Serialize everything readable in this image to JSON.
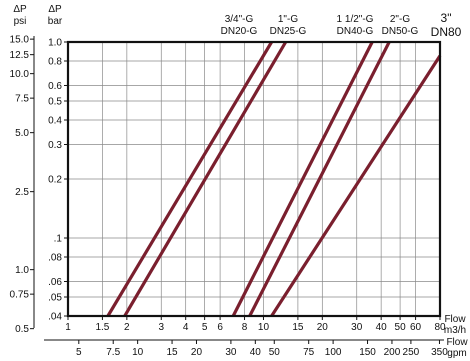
{
  "chart_data": {
    "type": "line",
    "x_scale": "log",
    "y_scale": "log",
    "grid": true,
    "header_left_psi": [
      "ΔP",
      "psi"
    ],
    "header_left_bar": [
      "ΔP",
      "bar"
    ],
    "x_axis_label_m3h": [
      "Flow",
      "m3/h"
    ],
    "x_axis_label_gpm": [
      "Flow",
      "gpm"
    ],
    "xlim_m3h": [
      1,
      80
    ],
    "ylim_bar": [
      0.04,
      1.0
    ],
    "x_ticks_m3h": [
      {
        "v": 1,
        "t": "1"
      },
      {
        "v": 1.5,
        "t": "1.5"
      },
      {
        "v": 2,
        "t": "2"
      },
      {
        "v": 3,
        "t": "3"
      },
      {
        "v": 4,
        "t": "4"
      },
      {
        "v": 5,
        "t": "5"
      },
      {
        "v": 6,
        "t": "6"
      },
      {
        "v": 8,
        "t": "8"
      },
      {
        "v": 10,
        "t": "10"
      },
      {
        "v": 15,
        "t": "15"
      },
      {
        "v": 20,
        "t": "20"
      },
      {
        "v": 30,
        "t": "30"
      },
      {
        "v": 40,
        "t": "40"
      },
      {
        "v": 50,
        "t": "50"
      },
      {
        "v": 60,
        "t": "60"
      },
      {
        "v": 80,
        "t": "80"
      }
    ],
    "x_ticks_gpm": [
      {
        "v": 5,
        "t": "5"
      },
      {
        "v": 7.5,
        "t": "7.5"
      },
      {
        "v": 10,
        "t": "10"
      },
      {
        "v": 15,
        "t": "15"
      },
      {
        "v": 20,
        "t": "20"
      },
      {
        "v": 30,
        "t": "30"
      },
      {
        "v": 40,
        "t": "40"
      },
      {
        "v": 50,
        "t": "50"
      },
      {
        "v": 75,
        "t": "75"
      },
      {
        "v": 100,
        "t": "100"
      },
      {
        "v": 150,
        "t": "150"
      },
      {
        "v": 200,
        "t": "200"
      },
      {
        "v": 250,
        "t": "250"
      },
      {
        "v": 350,
        "t": "350"
      }
    ],
    "y_ticks_bar": [
      {
        "v": 1.0,
        "t": "1.0"
      },
      {
        "v": 0.8,
        "t": "0.8"
      },
      {
        "v": 0.6,
        "t": "0.6"
      },
      {
        "v": 0.5,
        "t": "0.5"
      },
      {
        "v": 0.4,
        "t": "0.4"
      },
      {
        "v": 0.3,
        "t": "0.3"
      },
      {
        "v": 0.2,
        "t": "0.2"
      },
      {
        "v": 0.1,
        "t": ".1"
      },
      {
        "v": 0.08,
        "t": ".08"
      },
      {
        "v": 0.06,
        "t": ".06"
      },
      {
        "v": 0.05,
        "t": ".05"
      },
      {
        "v": 0.04,
        "t": ".04"
      }
    ],
    "y_ticks_psi": [
      {
        "v": 15.0,
        "t": "15.0"
      },
      {
        "v": 12.5,
        "t": "12.5"
      },
      {
        "v": 10.0,
        "t": "10.0"
      },
      {
        "v": 7.5,
        "t": "7.5"
      },
      {
        "v": 5.0,
        "t": "5.0"
      },
      {
        "v": 2.5,
        "t": "2.5"
      },
      {
        "v": 1.0,
        "t": "1.0"
      },
      {
        "v": 0.75,
        "t": "0.75"
      },
      {
        "v": 0.5,
        "t": "0.5"
      }
    ],
    "series": [
      {
        "name": "3/4\"-G DN20-G",
        "label_lines": [
          "3/4\"-G",
          "DN20-G"
        ],
        "x": [
          1.6,
          11.0
        ],
        "y": [
          0.04,
          1.0
        ]
      },
      {
        "name": "1\"-G DN25-G",
        "label_lines": [
          "1\"-G",
          "DN25-G"
        ],
        "x": [
          1.95,
          13.0
        ],
        "y": [
          0.04,
          1.0
        ]
      },
      {
        "name": "1 1/2\"-G DN40-G",
        "label_lines": [
          "1 1/2\"-G",
          "DN40-G"
        ],
        "x": [
          7.0,
          36.0
        ],
        "y": [
          0.04,
          1.0
        ]
      },
      {
        "name": "2\"-G DN50-G",
        "label_lines": [
          "2\"-G",
          "DN50-G"
        ],
        "x": [
          8.5,
          44.0
        ],
        "y": [
          0.04,
          1.0
        ]
      },
      {
        "name": "3\" DN80",
        "label_lines": [
          "3\"",
          "DN80"
        ],
        "x": [
          11.0,
          80.0
        ],
        "y": [
          0.04,
          0.85
        ]
      }
    ],
    "line_color": "#7a1f2e"
  }
}
